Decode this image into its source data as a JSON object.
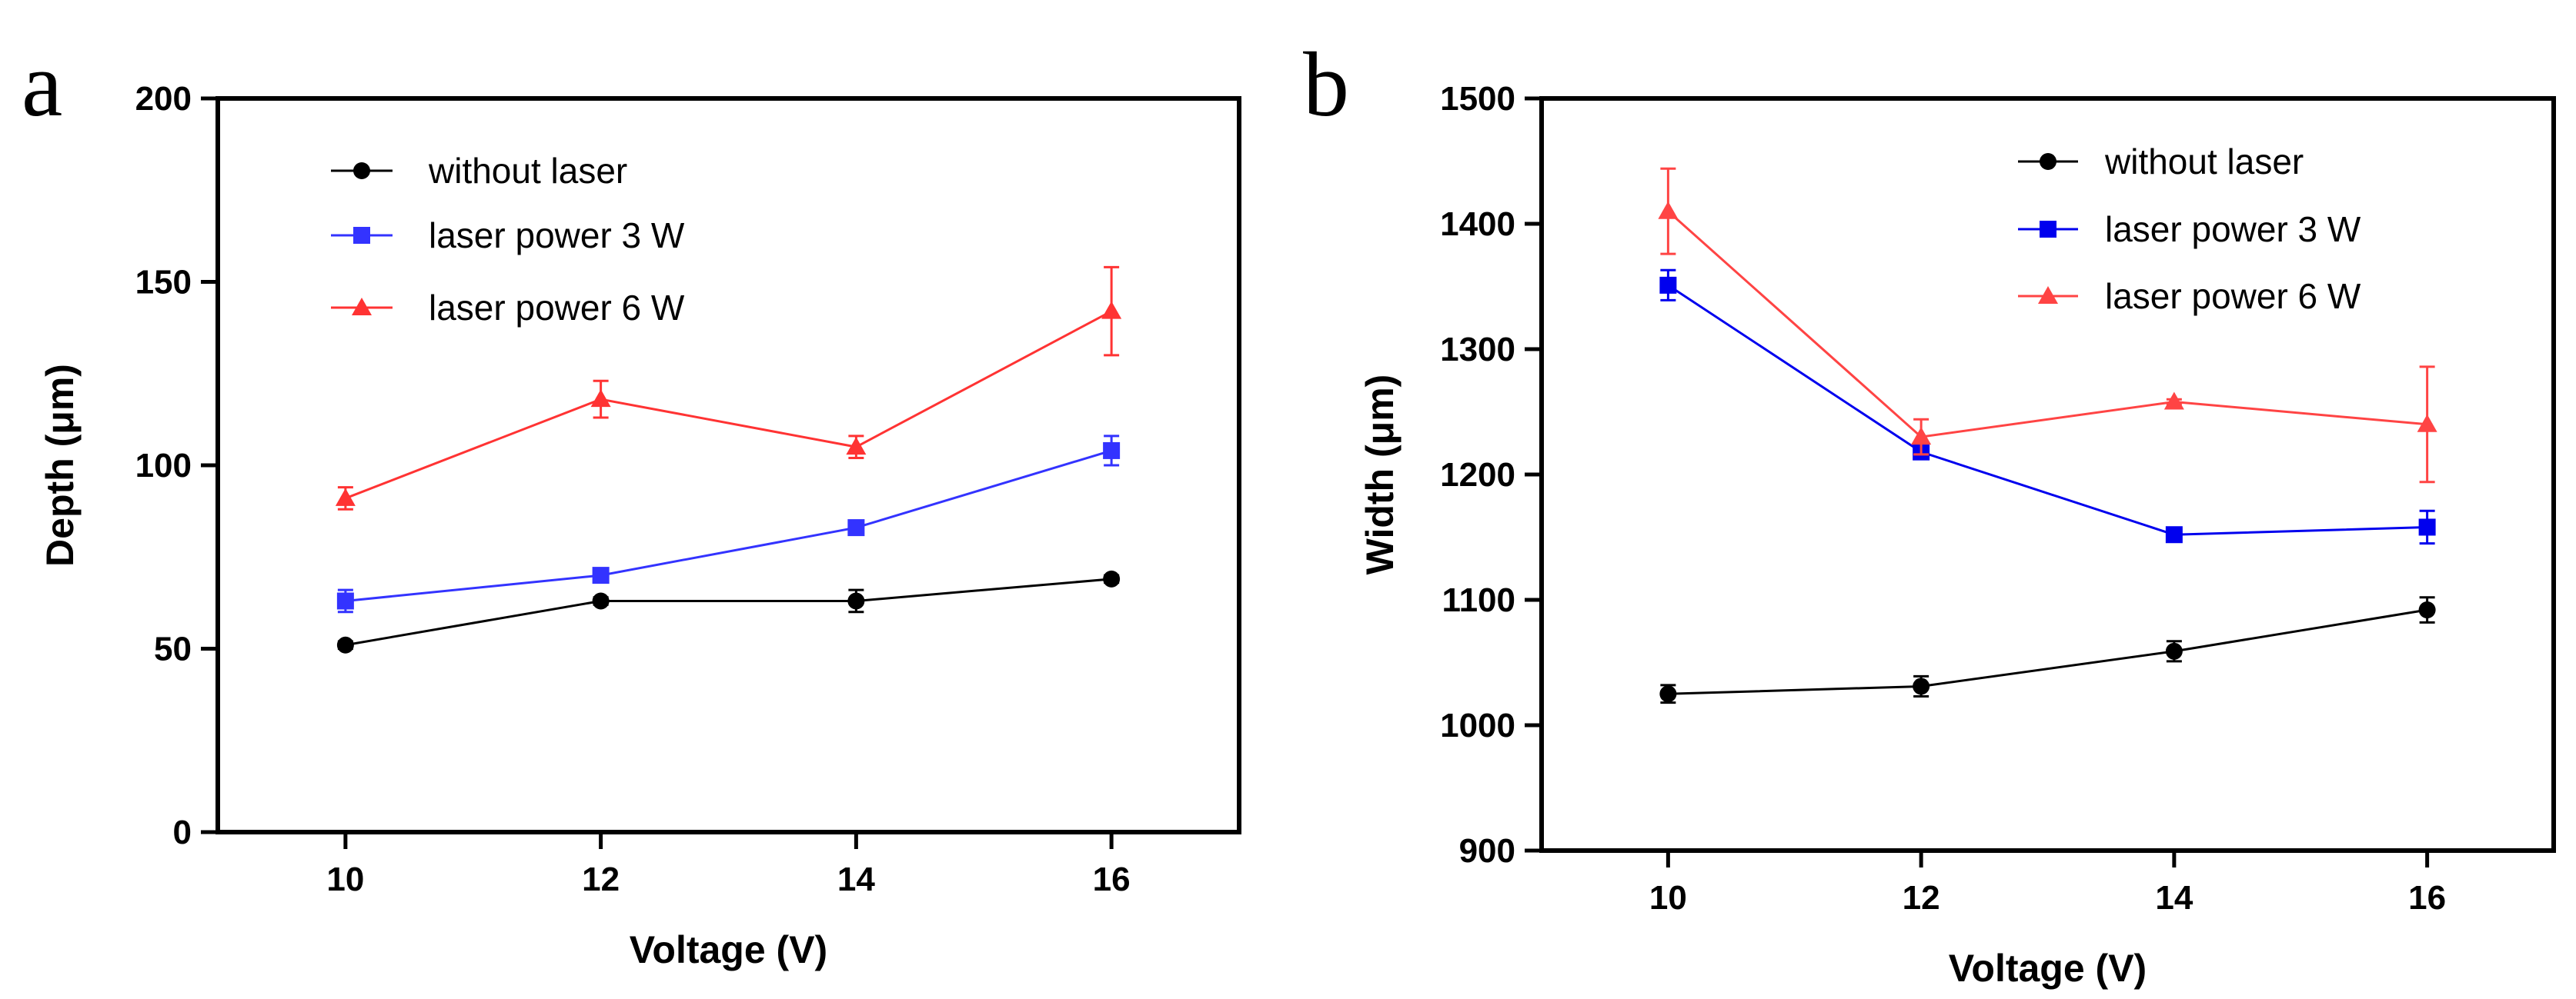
{
  "chart_data": [
    {
      "panel": "a",
      "type": "line",
      "title": "",
      "xlabel": "Voltage (V)",
      "ylabel": "Depth (μm)",
      "xlim": [
        9,
        17
      ],
      "ylim": [
        0,
        200
      ],
      "xticks": [
        10,
        12,
        14,
        16
      ],
      "yticks": [
        0,
        50,
        100,
        150,
        200
      ],
      "grid": false,
      "legend_position": "top-left",
      "series": [
        {
          "name": "without laser",
          "color": "#000000",
          "marker": "circle",
          "x": [
            10,
            12,
            14,
            16
          ],
          "y": [
            51,
            63,
            63,
            69
          ],
          "err": [
            1,
            1,
            3,
            1
          ]
        },
        {
          "name": "laser power 3 W",
          "color": "#3333ff",
          "marker": "square",
          "x": [
            10,
            12,
            14,
            16
          ],
          "y": [
            63,
            70,
            83,
            104
          ],
          "err": [
            3,
            1,
            1,
            4
          ]
        },
        {
          "name": "laser power 6 W",
          "color": "#ff3333",
          "marker": "triangle",
          "x": [
            10,
            12,
            14,
            16
          ],
          "y": [
            91,
            118,
            105,
            142
          ],
          "err": [
            3,
            5,
            3,
            12
          ]
        }
      ]
    },
    {
      "panel": "b",
      "type": "line",
      "title": "",
      "xlabel": "Voltage (V)",
      "ylabel": "Width (μm)",
      "xlim": [
        9,
        17
      ],
      "ylim": [
        900,
        1500
      ],
      "xticks": [
        10,
        12,
        14,
        16
      ],
      "yticks": [
        900,
        1000,
        1100,
        1200,
        1300,
        1400,
        1500
      ],
      "grid": false,
      "legend_position": "top-right",
      "series": [
        {
          "name": "without laser",
          "color": "#000000",
          "marker": "circle",
          "x": [
            10,
            12,
            14,
            16
          ],
          "y": [
            1025,
            1031,
            1059,
            1092
          ],
          "err": [
            7,
            8,
            8,
            10
          ]
        },
        {
          "name": "laser power 3 W",
          "color": "#0000ee",
          "marker": "square",
          "x": [
            10,
            12,
            14,
            16
          ],
          "y": [
            1351,
            1218,
            1152,
            1158
          ],
          "err": [
            12,
            4,
            5,
            13
          ]
        },
        {
          "name": "laser power 6 W",
          "color": "#ff4444",
          "marker": "triangle",
          "x": [
            10,
            12,
            14,
            16
          ],
          "y": [
            1410,
            1230,
            1258,
            1240
          ],
          "err": [
            34,
            14,
            2,
            46
          ]
        }
      ]
    }
  ]
}
